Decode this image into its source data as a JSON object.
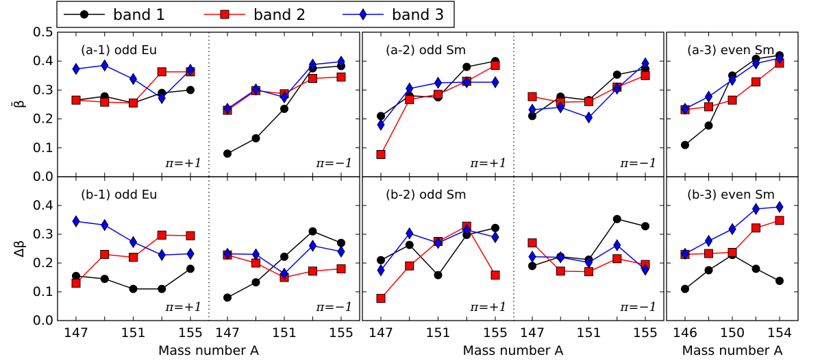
{
  "legend": [
    "band 1",
    "band 2",
    "band 3"
  ],
  "series_styles": {
    "band 1": {
      "color": "#000000",
      "marker": "circle"
    },
    "band 2": {
      "color": "#ff0000",
      "marker": "square"
    },
    "band 3": {
      "color": "#0000ff",
      "marker": "diamond"
    }
  },
  "ylabels": {
    "top": "β̄",
    "bottom": "Δβ"
  },
  "xlabels": [
    "Mass number A",
    "Mass number A",
    "Mass number A"
  ],
  "chart_data": [
    {
      "type": "line",
      "id": "a-1",
      "title": "(a-1) odd Eu",
      "ylim": [
        0,
        0.5
      ],
      "yticks": [
        "0.0",
        "0.1",
        "0.2",
        "0.3",
        "0.4",
        "0.5"
      ],
      "groups": [
        {
          "pi": "π=+1",
          "x": [
            147,
            149,
            151,
            153,
            155
          ],
          "xticks": [
            147,
            151,
            155
          ],
          "series": [
            {
              "name": "band 1",
              "values": [
                0.265,
                0.278,
                0.255,
                0.29,
                0.3
              ]
            },
            {
              "name": "band 2",
              "values": [
                0.265,
                0.258,
                0.255,
                0.363,
                0.363
              ]
            },
            {
              "name": "band 3",
              "values": [
                0.373,
                0.385,
                0.338,
                0.272,
                0.37
              ]
            }
          ]
        },
        {
          "pi": "π=−1",
          "x": [
            147,
            149,
            151,
            153,
            155
          ],
          "xticks": [
            147,
            151,
            155
          ],
          "series": [
            {
              "name": "band 1",
              "values": [
                0.08,
                0.133,
                0.235,
                0.375,
                0.383
              ]
            },
            {
              "name": "band 2",
              "values": [
                0.23,
                0.298,
                0.287,
                0.34,
                0.345
              ]
            },
            {
              "name": "band 3",
              "values": [
                0.235,
                0.302,
                0.275,
                0.388,
                0.398
              ]
            }
          ]
        }
      ]
    },
    {
      "type": "line",
      "id": "a-2",
      "title": "(a-2) odd Sm",
      "ylim": [
        0,
        0.5
      ],
      "groups": [
        {
          "pi": "π=+1",
          "x": [
            147,
            149,
            151,
            153,
            155
          ],
          "xticks": [
            147,
            151,
            155
          ],
          "series": [
            {
              "name": "band 1",
              "values": [
                0.21,
                0.28,
                0.275,
                0.38,
                0.4
              ]
            },
            {
              "name": "band 2",
              "values": [
                0.077,
                0.267,
                0.285,
                0.33,
                0.385
              ]
            },
            {
              "name": "band 3",
              "values": [
                0.18,
                0.305,
                0.325,
                0.327,
                0.327
              ]
            }
          ]
        },
        {
          "pi": "π=−1",
          "x": [
            147,
            149,
            151,
            153,
            155
          ],
          "xticks": [
            147,
            151,
            155
          ],
          "series": [
            {
              "name": "band 1",
              "values": [
                0.21,
                0.277,
                0.265,
                0.353,
                0.373
              ]
            },
            {
              "name": "band 2",
              "values": [
                0.277,
                0.258,
                0.26,
                0.31,
                0.35
              ]
            },
            {
              "name": "band 3",
              "values": [
                0.232,
                0.24,
                0.205,
                0.305,
                0.392
              ]
            }
          ]
        }
      ]
    },
    {
      "type": "line",
      "id": "a-3",
      "title": "(a-3) even Sm",
      "ylim": [
        0,
        0.5
      ],
      "groups": [
        {
          "pi": "",
          "x": [
            146,
            148,
            150,
            152,
            154
          ],
          "xticks": [
            146,
            150,
            154
          ],
          "series": [
            {
              "name": "band 1",
              "values": [
                0.11,
                0.177,
                0.35,
                0.408,
                0.42
              ]
            },
            {
              "name": "band 2",
              "values": [
                0.232,
                0.242,
                0.265,
                0.328,
                0.393
              ]
            },
            {
              "name": "band 3",
              "values": [
                0.235,
                0.277,
                0.335,
                0.392,
                0.41
              ]
            }
          ]
        }
      ]
    },
    {
      "type": "line",
      "id": "b-1",
      "title": "(b-1) odd Eu",
      "ylim": [
        0,
        0.5
      ],
      "yticks": [
        "0.0",
        "0.1",
        "0.2",
        "0.3",
        "0.4"
      ],
      "groups": [
        {
          "pi": "π=+1",
          "x": [
            147,
            149,
            151,
            153,
            155
          ],
          "xticks": [
            147,
            151,
            155
          ],
          "series": [
            {
              "name": "band 1",
              "values": [
                0.155,
                0.145,
                0.11,
                0.11,
                0.18
              ]
            },
            {
              "name": "band 2",
              "values": [
                0.13,
                0.23,
                0.22,
                0.297,
                0.295
              ]
            },
            {
              "name": "band 3",
              "values": [
                0.345,
                0.332,
                0.273,
                0.228,
                0.232
              ]
            }
          ]
        },
        {
          "pi": "π=−1",
          "x": [
            147,
            149,
            151,
            153,
            155
          ],
          "xticks": [
            147,
            151,
            155
          ],
          "series": [
            {
              "name": "band 1",
              "values": [
                0.08,
                0.133,
                0.222,
                0.31,
                0.27
              ]
            },
            {
              "name": "band 2",
              "values": [
                0.228,
                0.2,
                0.15,
                0.172,
                0.18
              ]
            },
            {
              "name": "band 3",
              "values": [
                0.232,
                0.23,
                0.163,
                0.26,
                0.24
              ]
            }
          ]
        }
      ]
    },
    {
      "type": "line",
      "id": "b-2",
      "title": "(b-2) odd Sm",
      "ylim": [
        0,
        0.5
      ],
      "groups": [
        {
          "pi": "π=+1",
          "x": [
            147,
            149,
            151,
            153,
            155
          ],
          "xticks": [
            147,
            151,
            155
          ],
          "series": [
            {
              "name": "band 1",
              "values": [
                0.21,
                0.263,
                0.158,
                0.298,
                0.322
              ]
            },
            {
              "name": "band 2",
              "values": [
                0.077,
                0.19,
                0.275,
                0.328,
                0.158
              ]
            },
            {
              "name": "band 3",
              "values": [
                0.175,
                0.303,
                0.27,
                0.315,
                0.29
              ]
            }
          ]
        },
        {
          "pi": "π=−1",
          "x": [
            147,
            149,
            151,
            153,
            155
          ],
          "xticks": [
            147,
            151,
            155
          ],
          "series": [
            {
              "name": "band 1",
              "values": [
                0.19,
                0.222,
                0.212,
                0.353,
                0.328
              ]
            },
            {
              "name": "band 2",
              "values": [
                0.27,
                0.172,
                0.17,
                0.215,
                0.195
              ]
            },
            {
              "name": "band 3",
              "values": [
                0.222,
                0.22,
                0.202,
                0.262,
                0.177
              ]
            }
          ]
        }
      ]
    },
    {
      "type": "line",
      "id": "b-3",
      "title": "(b-3) even Sm",
      "ylim": [
        0,
        0.5
      ],
      "groups": [
        {
          "pi": "",
          "x": [
            146,
            148,
            150,
            152,
            154
          ],
          "xticks": [
            146,
            150,
            154
          ],
          "series": [
            {
              "name": "band 1",
              "values": [
                0.11,
                0.175,
                0.228,
                0.18,
                0.138
              ]
            },
            {
              "name": "band 2",
              "values": [
                0.23,
                0.233,
                0.237,
                0.322,
                0.348
              ]
            },
            {
              "name": "band 3",
              "values": [
                0.232,
                0.277,
                0.318,
                0.388,
                0.395
              ]
            }
          ]
        }
      ]
    }
  ]
}
